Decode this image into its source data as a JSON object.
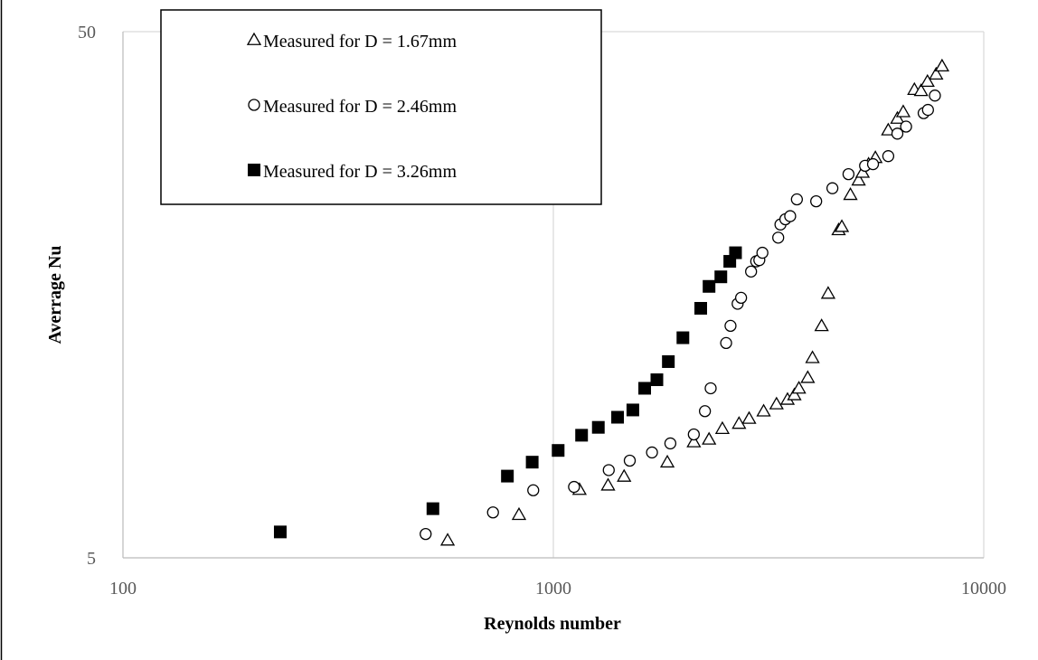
{
  "chart_data": {
    "type": "scatter",
    "xlabel": "Reynolds number",
    "ylabel": "Averrage Nu",
    "x_scale": "log",
    "y_scale": "log",
    "xlim": [
      100,
      10000
    ],
    "ylim": [
      5,
      50
    ],
    "x_ticks": [
      100,
      1000,
      10000
    ],
    "x_tick_labels": [
      "100",
      "1000",
      "10000"
    ],
    "y_ticks": [
      5,
      50
    ],
    "y_tick_labels": [
      "5",
      "50"
    ],
    "grid": true,
    "legend_position": "top-left",
    "series": [
      {
        "name": "Measured for D = 1.67mm",
        "marker": "triangle-open",
        "color": "#000000",
        "points": [
          [
            568,
            5.4
          ],
          [
            832,
            6.04
          ],
          [
            1150,
            6.74
          ],
          [
            1340,
            6.87
          ],
          [
            1460,
            7.14
          ],
          [
            1840,
            7.6
          ],
          [
            2120,
            8.3
          ],
          [
            2300,
            8.4
          ],
          [
            2470,
            8.8
          ],
          [
            2700,
            9.0
          ],
          [
            2850,
            9.2
          ],
          [
            3080,
            9.5
          ],
          [
            3300,
            9.8
          ],
          [
            3500,
            10.0
          ],
          [
            3630,
            10.2
          ],
          [
            3720,
            10.5
          ],
          [
            3900,
            11.0
          ],
          [
            4000,
            12.0
          ],
          [
            4200,
            13.8
          ],
          [
            4350,
            15.9
          ],
          [
            4600,
            21.0
          ],
          [
            4680,
            21.3
          ],
          [
            4900,
            24.5
          ],
          [
            5120,
            26.1
          ],
          [
            5230,
            27.0
          ],
          [
            5400,
            28.0
          ],
          [
            5600,
            28.8
          ],
          [
            6000,
            32.5
          ],
          [
            6300,
            34.2
          ],
          [
            6500,
            35.2
          ],
          [
            6900,
            38.8
          ],
          [
            7150,
            38.6
          ],
          [
            7400,
            40.2
          ],
          [
            7750,
            41.5
          ],
          [
            8000,
            43.0
          ]
        ]
      },
      {
        "name": "Measured for D = 2.46mm",
        "marker": "circle-open",
        "color": "#000000",
        "points": [
          [
            505,
            5.55
          ],
          [
            724,
            6.1
          ],
          [
            898,
            6.72
          ],
          [
            1117,
            6.82
          ],
          [
            1345,
            7.34
          ],
          [
            1505,
            7.65
          ],
          [
            1695,
            7.93
          ],
          [
            1870,
            8.25
          ],
          [
            2120,
            8.58
          ],
          [
            2250,
            9.5
          ],
          [
            2320,
            10.5
          ],
          [
            2520,
            12.8
          ],
          [
            2580,
            13.8
          ],
          [
            2680,
            15.2
          ],
          [
            2730,
            15.6
          ],
          [
            2880,
            17.5
          ],
          [
            2960,
            18.3
          ],
          [
            3010,
            18.4
          ],
          [
            3060,
            19.0
          ],
          [
            3330,
            20.3
          ],
          [
            3370,
            21.5
          ],
          [
            3460,
            22.0
          ],
          [
            3550,
            22.3
          ],
          [
            3680,
            24.0
          ],
          [
            4080,
            23.8
          ],
          [
            4450,
            25.2
          ],
          [
            4850,
            26.8
          ],
          [
            5300,
            27.8
          ],
          [
            5530,
            28.0
          ],
          [
            6000,
            29.0
          ],
          [
            6300,
            32.0
          ],
          [
            6600,
            33.0
          ],
          [
            7250,
            35.0
          ],
          [
            7420,
            35.5
          ],
          [
            7700,
            37.8
          ]
        ]
      },
      {
        "name": "Measured for D = 3.26mm",
        "marker": "square-filled",
        "color": "#000000",
        "points": [
          [
            232,
            5.6
          ],
          [
            525,
            6.2
          ],
          [
            782,
            7.15
          ],
          [
            893,
            7.6
          ],
          [
            1026,
            8.0
          ],
          [
            1163,
            8.55
          ],
          [
            1272,
            8.85
          ],
          [
            1410,
            9.25
          ],
          [
            1530,
            9.55
          ],
          [
            1630,
            10.5
          ],
          [
            1740,
            10.9
          ],
          [
            1850,
            11.8
          ],
          [
            2000,
            13.1
          ],
          [
            2200,
            14.9
          ],
          [
            2300,
            16.4
          ],
          [
            2450,
            17.1
          ],
          [
            2570,
            18.3
          ],
          [
            2650,
            19.0
          ]
        ]
      }
    ]
  }
}
